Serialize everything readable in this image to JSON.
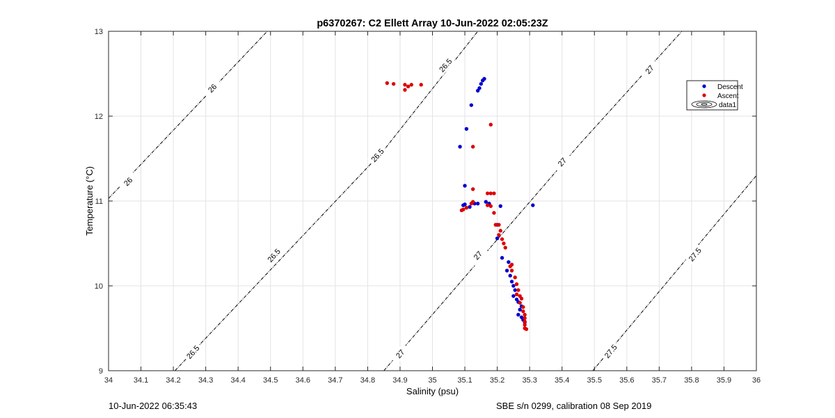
{
  "chart_data": {
    "type": "scatter",
    "title": "p6370267: C2 Ellett Array 10-Jun-2022 02:05:23Z",
    "xlabel": "Salinity (psu)",
    "ylabel": "Temperature (°C)",
    "xlim": [
      34,
      36
    ],
    "ylim": [
      9,
      13
    ],
    "xticks": [
      34,
      34.1,
      34.2,
      34.3,
      34.4,
      34.5,
      34.6,
      34.7,
      34.8,
      34.9,
      35,
      35.1,
      35.2,
      35.3,
      35.4,
      35.5,
      35.6,
      35.7,
      35.8,
      35.9,
      36
    ],
    "xtick_labels": [
      "34",
      "34.1",
      "34.2",
      "34.3",
      "34.4",
      "34.5",
      "34.6",
      "34.7",
      "34.8",
      "34.9",
      "35",
      "35.1",
      "35.2",
      "35.3",
      "35.4",
      "35.5",
      "35.6",
      "35.7",
      "35.8",
      "35.9",
      "36"
    ],
    "yticks": [
      9,
      10,
      11,
      12,
      13
    ],
    "ytick_labels": [
      "9",
      "10",
      "11",
      "12",
      "13"
    ],
    "grid": true,
    "legend_position": "top-right",
    "legend": [
      {
        "label": "Descent",
        "kind": "marker",
        "color": "#0000cc"
      },
      {
        "label": "Ascent",
        "kind": "marker",
        "color": "#dd0000"
      },
      {
        "label": "data1",
        "kind": "contour",
        "color": "#000000"
      }
    ],
    "contours": [
      {
        "sigma": "26",
        "line": [
          [
            34.0,
            11.03
          ],
          [
            34.49,
            13.0
          ]
        ],
        "labels": [
          {
            "text": "26",
            "x": 34.06,
            "y": 11.23
          },
          {
            "text": "26",
            "x": 34.32,
            "y": 12.33
          }
        ]
      },
      {
        "sigma": "26.5",
        "line": [
          [
            34.205,
            9.0
          ],
          [
            34.85,
            11.6
          ],
          [
            35.14,
            13.0
          ]
        ],
        "labels": [
          {
            "text": "26.5",
            "x": 34.26,
            "y": 9.22
          },
          {
            "text": "26.5",
            "x": 34.51,
            "y": 10.36
          },
          {
            "text": "26.5",
            "x": 34.83,
            "y": 11.54
          },
          {
            "text": "26.5",
            "x": 35.04,
            "y": 12.6
          }
        ]
      },
      {
        "sigma": "27",
        "line": [
          [
            34.85,
            9.0
          ],
          [
            35.45,
            11.65
          ],
          [
            35.77,
            13.0
          ]
        ],
        "labels": [
          {
            "text": "27",
            "x": 34.9,
            "y": 9.2
          },
          {
            "text": "27",
            "x": 35.14,
            "y": 10.36
          },
          {
            "text": "27",
            "x": 35.4,
            "y": 11.46
          },
          {
            "text": "27",
            "x": 35.67,
            "y": 12.55
          }
        ]
      },
      {
        "sigma": "27.5",
        "line": [
          [
            35.495,
            9.0
          ],
          [
            36.0,
            11.3
          ]
        ],
        "labels": [
          {
            "text": "27.5",
            "x": 35.55,
            "y": 9.23
          },
          {
            "text": "27.5",
            "x": 35.81,
            "y": 10.37
          }
        ]
      }
    ],
    "series": [
      {
        "name": "Descent",
        "color": "#0000cc",
        "points": [
          [
            35.16,
            12.44
          ],
          [
            35.155,
            12.42
          ],
          [
            35.15,
            12.38
          ],
          [
            35.145,
            12.33
          ],
          [
            35.14,
            12.3
          ],
          [
            35.12,
            12.13
          ],
          [
            35.105,
            11.85
          ],
          [
            35.085,
            11.64
          ],
          [
            35.1,
            11.18
          ],
          [
            35.1,
            10.96
          ],
          [
            35.095,
            10.95
          ],
          [
            35.115,
            10.93
          ],
          [
            35.13,
            10.97
          ],
          [
            35.14,
            10.97
          ],
          [
            35.165,
            10.99
          ],
          [
            35.175,
            10.97
          ],
          [
            35.21,
            10.94
          ],
          [
            35.31,
            10.95
          ],
          [
            35.2,
            10.72
          ],
          [
            35.2,
            10.56
          ],
          [
            35.215,
            10.33
          ],
          [
            35.235,
            10.28
          ],
          [
            35.23,
            10.18
          ],
          [
            35.24,
            10.12
          ],
          [
            35.245,
            10.05
          ],
          [
            35.25,
            10.0
          ],
          [
            35.255,
            9.95
          ],
          [
            35.25,
            9.88
          ],
          [
            35.26,
            9.84
          ],
          [
            35.265,
            9.81
          ],
          [
            35.275,
            9.76
          ],
          [
            35.27,
            9.72
          ],
          [
            35.265,
            9.66
          ],
          [
            35.275,
            9.63
          ],
          [
            35.28,
            9.6
          ],
          [
            35.285,
            9.57
          ]
        ]
      },
      {
        "name": "Ascent",
        "color": "#dd0000",
        "points": [
          [
            34.86,
            12.39
          ],
          [
            34.88,
            12.38
          ],
          [
            34.915,
            12.37
          ],
          [
            34.935,
            12.37
          ],
          [
            34.925,
            12.35
          ],
          [
            34.965,
            12.37
          ],
          [
            34.915,
            12.31
          ],
          [
            35.18,
            11.9
          ],
          [
            35.125,
            11.64
          ],
          [
            35.125,
            11.14
          ],
          [
            35.17,
            11.09
          ],
          [
            35.18,
            11.09
          ],
          [
            35.19,
            11.09
          ],
          [
            35.125,
            10.99
          ],
          [
            35.12,
            10.97
          ],
          [
            35.09,
            10.89
          ],
          [
            35.095,
            10.9
          ],
          [
            35.105,
            10.92
          ],
          [
            35.17,
            10.95
          ],
          [
            35.18,
            10.94
          ],
          [
            35.19,
            10.86
          ],
          [
            35.195,
            10.72
          ],
          [
            35.205,
            10.72
          ],
          [
            35.21,
            10.65
          ],
          [
            35.205,
            10.6
          ],
          [
            35.215,
            10.55
          ],
          [
            35.22,
            10.5
          ],
          [
            35.225,
            10.45
          ],
          [
            35.245,
            10.25
          ],
          [
            35.24,
            10.23
          ],
          [
            35.245,
            10.18
          ],
          [
            35.255,
            10.1
          ],
          [
            35.26,
            10.02
          ],
          [
            35.265,
            9.95
          ],
          [
            35.26,
            9.9
          ],
          [
            35.27,
            9.88
          ],
          [
            35.275,
            9.85
          ],
          [
            35.27,
            9.8
          ],
          [
            35.28,
            9.75
          ],
          [
            35.28,
            9.7
          ],
          [
            35.285,
            9.66
          ],
          [
            35.285,
            9.62
          ],
          [
            35.285,
            9.58
          ],
          [
            35.285,
            9.54
          ],
          [
            35.285,
            9.5
          ],
          [
            35.29,
            9.49
          ]
        ]
      }
    ]
  },
  "footer": {
    "left": "10-Jun-2022 06:35:43",
    "right": "SBE s/n 0299, calibration 08 Sep 2019"
  }
}
